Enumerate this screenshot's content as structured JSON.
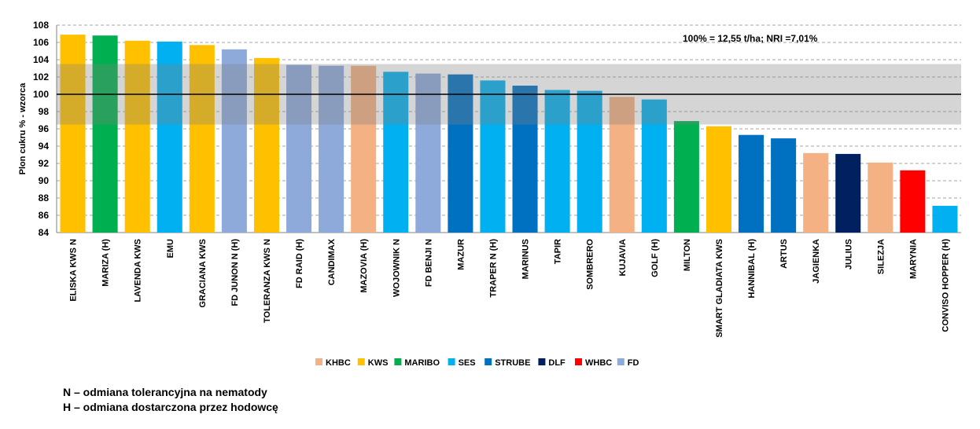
{
  "chart_data": {
    "type": "bar",
    "ylabel": "Plon cukru % - wzorca",
    "ylim": [
      84,
      108
    ],
    "yticks": [
      84,
      86,
      88,
      90,
      92,
      94,
      96,
      98,
      100,
      102,
      104,
      106,
      108
    ],
    "grid": true,
    "reference_line": 100,
    "band": [
      96.5,
      103.5
    ],
    "annotation": "100% = 12,55 t/ha;  NRI =7,01%",
    "categories": [
      "ELISKA KWS N",
      "MARIZA (H)",
      "LAVENDA KWS",
      "EMU",
      "GRACIANA KWS",
      "FD JUNON N (H)",
      "TOLERANZA KWS N",
      "FD RAID (H)",
      "CANDIMAX",
      "MAZOVIA (H)",
      "WOJOWNIK N",
      "FD BENJI N",
      "MAZUR",
      "TRAPER N (H)",
      "MARINUS",
      "TAPIR",
      "SOMBRERO",
      "KUJAVIA",
      "GOLF (H)",
      "MILTON",
      "SMART GLADIATA KWS",
      "HANNIBAL (H)",
      "ARTUS",
      "JAGIENKA",
      "JULIUS",
      "SILEZJA",
      "MARYNIA",
      "CONVISO HOPPER (H)"
    ],
    "values": [
      106.9,
      106.8,
      106.2,
      106.1,
      105.7,
      105.2,
      104.2,
      103.4,
      103.3,
      103.3,
      102.6,
      102.4,
      102.3,
      101.6,
      101.0,
      100.5,
      100.4,
      99.7,
      99.4,
      96.9,
      96.3,
      95.3,
      94.9,
      93.2,
      93.1,
      92.1,
      91.2,
      87.1
    ],
    "breeders": [
      "KWS",
      "MARIBO",
      "KWS",
      "SES",
      "KWS",
      "FD",
      "KWS",
      "FD",
      "FD",
      "KHBC",
      "SES",
      "FD",
      "STRUBE",
      "SES",
      "STRUBE",
      "SES",
      "SES",
      "KHBC",
      "SES",
      "MARIBO",
      "KWS",
      "STRUBE",
      "STRUBE",
      "KHBC",
      "DLF",
      "KHBC",
      "WHBC",
      "SES"
    ],
    "legend": [
      {
        "name": "KHBC",
        "color": "#f4b183"
      },
      {
        "name": "KWS",
        "color": "#ffc000"
      },
      {
        "name": "MARIBO",
        "color": "#00b050"
      },
      {
        "name": "SES",
        "color": "#00b0f0"
      },
      {
        "name": "STRUBE",
        "color": "#0070c0"
      },
      {
        "name": "DLF",
        "color": "#002060"
      },
      {
        "name": "WHBC",
        "color": "#ff0000"
      },
      {
        "name": "FD",
        "color": "#8eaadb"
      }
    ],
    "legend_position": "bottom"
  },
  "notes": {
    "line1": "N – odmiana tolerancyjna na nematody",
    "line2": "H – odmiana dostarczona przez hodowcę"
  }
}
